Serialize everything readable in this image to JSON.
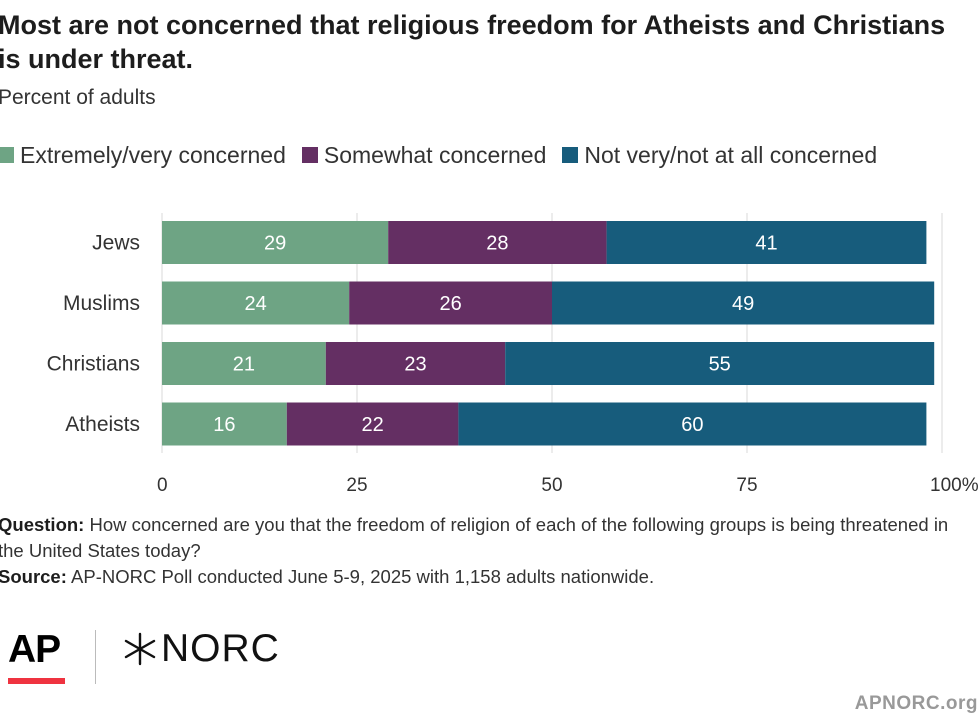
{
  "title": "Most are not concerned that religious freedom for Atheists and Christians is under threat.",
  "subtitle": "Percent of adults",
  "colors": {
    "extremely": "#6ea484",
    "somewhat": "#642f63",
    "not": "#175c7c",
    "grid": "#d9d9d9",
    "text": "#333333"
  },
  "chart_data": {
    "type": "bar",
    "orientation": "horizontal",
    "stacked": true,
    "categories": [
      "Jews",
      "Muslims",
      "Christians",
      "Atheists"
    ],
    "series": [
      {
        "name": "Extremely/very concerned",
        "values": [
          29,
          24,
          21,
          16
        ],
        "color": "#6ea484"
      },
      {
        "name": "Somewhat concerned",
        "values": [
          28,
          26,
          23,
          22
        ],
        "color": "#642f63"
      },
      {
        "name": "Not very/not at all concerned",
        "values": [
          41,
          49,
          55,
          60
        ],
        "color": "#175c7c"
      }
    ],
    "xlim": [
      0,
      100
    ],
    "x_ticks": [
      0,
      25,
      50,
      75,
      100
    ],
    "x_tick_labels": [
      "0",
      "25",
      "50",
      "75",
      "100%"
    ],
    "legend_position": "top-left",
    "grid": "vertical"
  },
  "notes": {
    "question_label": "Question:",
    "question_text": "How concerned are you that the freedom of religion of each of the following groups is being threatened in the United States today?",
    "source_label": "Source:",
    "source_text": "AP-NORC Poll conducted June 5-9, 2025 with 1,158 adults nationwide."
  },
  "logos": {
    "ap": "AP",
    "norc": "NORC"
  },
  "site": "APNORC.org"
}
